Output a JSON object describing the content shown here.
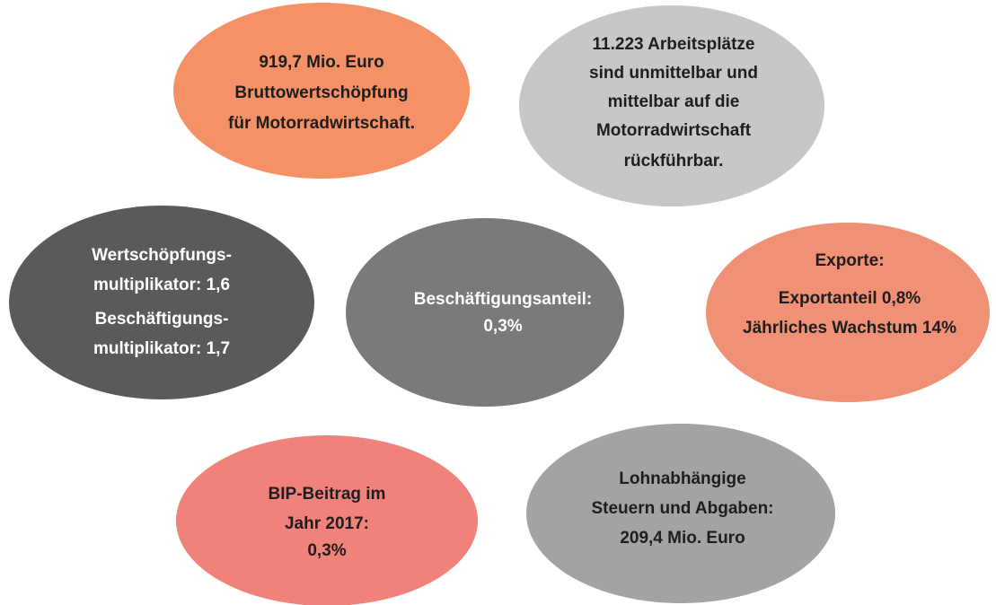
{
  "nodes": [
    {
      "lines": [
        "919,7 Mio. Euro",
        "Bruttowertschöpfung",
        "für Motorradwirtschaft."
      ]
    },
    {
      "lines": [
        "11.223 Arbeitsplätze",
        "sind unmittelbar und",
        "mittelbar auf die",
        "Motorradwirtschaft",
        "rückführbar."
      ]
    },
    {
      "lines": [
        "Wertschöpfungs-",
        "multiplikator: 1,6",
        "Beschäftigungs-",
        "multiplikator: 1,7"
      ]
    },
    {
      "lines": [
        "Beschäftigungsanteil:",
        "0,3%"
      ]
    },
    {
      "lines": [
        "Exporte:",
        "Exportanteil 0,8%",
        "Jährliches Wachstum 14%"
      ]
    },
    {
      "lines": [
        "BIP-Beitrag im",
        "Jahr 2017:",
        "0,3%"
      ]
    },
    {
      "lines": [
        "Lohnabhängige",
        "Steuern und Abgaben:",
        "209,4 Mio. Euro"
      ]
    }
  ]
}
